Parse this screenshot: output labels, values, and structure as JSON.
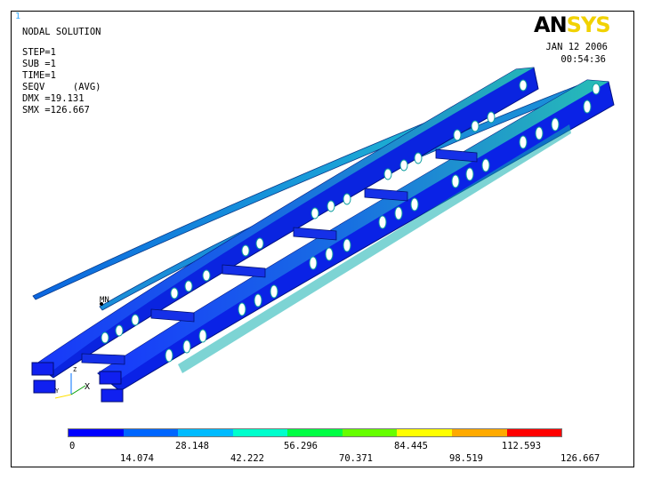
{
  "window": {
    "number": "1"
  },
  "header": {
    "title": "NODAL SOLUTION",
    "lines": [
      "STEP=1",
      "SUB =1",
      "TIME=1",
      "SEQV     (AVG)",
      "DMX =19.131",
      "SMX =126.667"
    ]
  },
  "brand": {
    "an": "AN",
    "sys": "SYS"
  },
  "timestamp": {
    "date": "JAN 12 2006",
    "time": "00:54:36"
  },
  "markers": {
    "mn": "MN",
    "axis_x": "X",
    "axis_y": "Y",
    "axis_z": "Z"
  },
  "legend": {
    "colors": [
      "#0000ff",
      "#0066ff",
      "#00bbff",
      "#00ffcc",
      "#00ff44",
      "#66ff00",
      "#ffff00",
      "#ffaa00",
      "#ff0000"
    ],
    "top_labels": [
      "0",
      "28.148",
      "56.296",
      "84.445",
      "112.593"
    ],
    "bottom_labels": [
      "14.074",
      "42.222",
      "70.371",
      "98.519",
      "126.667"
    ]
  }
}
